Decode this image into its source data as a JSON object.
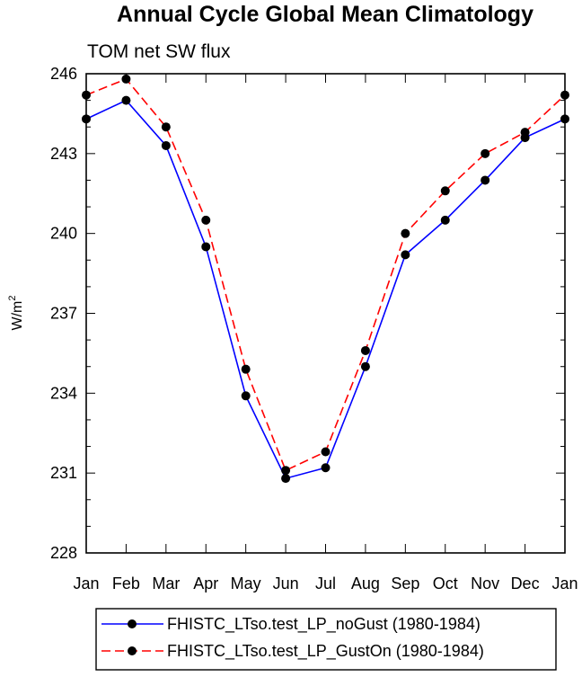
{
  "chart_data": {
    "type": "line",
    "title": "Annual Cycle Global Mean Climatology",
    "subtitle": "TOM net SW flux",
    "xlabel": "",
    "ylabel": "W/m",
    "ylabel_superscript": "2",
    "categories": [
      "Jan",
      "Feb",
      "Mar",
      "Apr",
      "May",
      "Jun",
      "Jul",
      "Aug",
      "Sep",
      "Oct",
      "Nov",
      "Dec",
      "Jan"
    ],
    "ylim": [
      228,
      246
    ],
    "yticks": [
      228,
      231,
      234,
      237,
      240,
      243,
      246
    ],
    "grid": false,
    "legend_position": "bottom",
    "series": [
      {
        "name": "FHISTC_LTso.test_LP_noGust (1980-1984)",
        "color": "#0000ff",
        "dash": "solid",
        "values": [
          244.3,
          245.0,
          243.3,
          239.5,
          233.9,
          230.8,
          231.2,
          235.0,
          239.2,
          240.5,
          242.0,
          243.6,
          244.3
        ]
      },
      {
        "name": "FHISTC_LTso.test_LP_GustOn (1980-1984)",
        "color": "#ff0000",
        "dash": "dashed",
        "values": [
          245.2,
          245.8,
          244.0,
          240.5,
          234.9,
          231.1,
          231.8,
          235.6,
          240.0,
          241.6,
          243.0,
          243.8,
          245.2
        ]
      }
    ]
  }
}
